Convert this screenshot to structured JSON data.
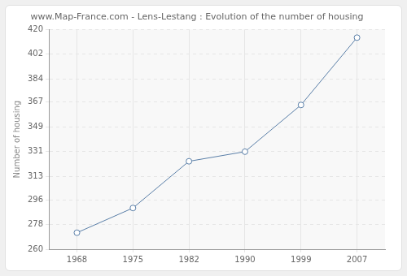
{
  "chart_data": {
    "type": "line",
    "title": "www.Map-France.com - Lens-Lestang : Evolution of the number of housing",
    "y_label": "Number of housing",
    "categories": [
      "1968",
      "1975",
      "1982",
      "1990",
      "1999",
      "2007"
    ],
    "values": [
      272,
      290,
      324,
      331,
      365,
      414
    ],
    "color": "#5a7fa8",
    "marker": "circle",
    "ylim": [
      260,
      420
    ],
    "yticks": [
      260,
      278,
      296,
      313,
      331,
      349,
      367,
      384,
      402,
      420
    ],
    "grid": true
  }
}
